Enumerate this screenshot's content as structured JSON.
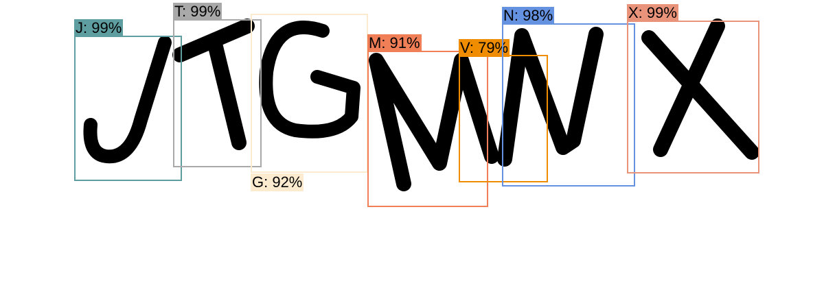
{
  "detections": [
    {
      "label": "J: 99%",
      "color": "#5f9ea0",
      "char": "J"
    },
    {
      "label": "T: 99%",
      "color": "#a9a9a9",
      "char": "T"
    },
    {
      "label": "G: 92%",
      "color": "#fdebd0",
      "char": "G"
    },
    {
      "label": "M: 91%",
      "color": "#f07f58",
      "char": "M"
    },
    {
      "label": "V: 79%",
      "color": "#f08c00",
      "char": "V"
    },
    {
      "label": "N: 98%",
      "color": "#6492e0",
      "char": "N"
    },
    {
      "label": "X: 99%",
      "color": "#e8937a",
      "char": "X"
    }
  ]
}
